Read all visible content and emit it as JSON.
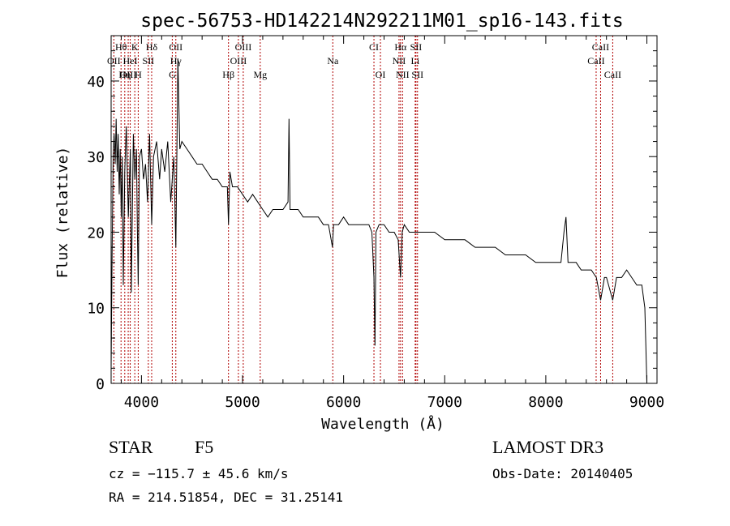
{
  "chart_data": {
    "type": "line",
    "title": "spec-56753-HD142214N292211M01_sp16-143.fits",
    "xlabel": "Wavelength (Å)",
    "ylabel": "Flux (relative)",
    "xlim": [
      3700,
      9100
    ],
    "ylim": [
      0,
      46
    ],
    "xticks": [
      4000,
      5000,
      6000,
      7000,
      8000,
      9000
    ],
    "yticks": [
      0,
      10,
      20,
      30,
      40
    ],
    "grid": false,
    "series": [
      {
        "name": "spectrum",
        "color": "#000000",
        "x": [
          3700,
          3710,
          3720,
          3730,
          3740,
          3750,
          3760,
          3770,
          3780,
          3790,
          3800,
          3810,
          3820,
          3835,
          3850,
          3870,
          3890,
          3900,
          3920,
          3935,
          3950,
          3960,
          3968,
          3980,
          4000,
          4020,
          4040,
          4060,
          4080,
          4101,
          4120,
          4150,
          4180,
          4200,
          4230,
          4260,
          4290,
          4320,
          4340,
          4360,
          4380,
          4400,
          4450,
          4500,
          4550,
          4600,
          4650,
          4700,
          4750,
          4800,
          4850,
          4861,
          4875,
          4900,
          4950,
          5000,
          5050,
          5100,
          5150,
          5200,
          5250,
          5300,
          5350,
          5400,
          5450,
          5460,
          5470,
          5480,
          5500,
          5550,
          5600,
          5650,
          5700,
          5750,
          5800,
          5850,
          5890,
          5900,
          5950,
          6000,
          6050,
          6100,
          6150,
          6200,
          6250,
          6280,
          6300,
          6310,
          6320,
          6350,
          6400,
          6450,
          6500,
          6540,
          6563,
          6580,
          6600,
          6650,
          6700,
          6750,
          6800,
          6900,
          7000,
          7100,
          7200,
          7300,
          7400,
          7500,
          7600,
          7700,
          7800,
          7900,
          8000,
          8100,
          8150,
          8180,
          8200,
          8220,
          8250,
          8300,
          8350,
          8400,
          8450,
          8500,
          8542,
          8580,
          8600,
          8662,
          8700,
          8750,
          8800,
          8850,
          8900,
          8950,
          8980,
          9000
        ],
        "y": [
          2,
          17,
          30,
          33,
          29,
          35,
          28,
          33,
          25,
          31,
          22,
          30,
          13,
          28,
          34,
          22,
          31,
          12,
          33,
          27,
          31,
          20,
          13,
          30,
          31,
          27,
          29,
          24,
          33,
          21,
          30,
          32,
          27,
          31,
          28,
          32,
          24,
          30,
          18,
          43,
          31,
          32,
          31,
          30,
          29,
          29,
          28,
          27,
          27,
          26,
          26,
          21,
          28,
          26,
          26,
          25,
          24,
          25,
          24,
          23,
          22,
          23,
          23,
          23,
          24,
          35,
          23,
          23,
          23,
          23,
          22,
          22,
          22,
          22,
          21,
          21,
          18,
          21,
          21,
          22,
          21,
          21,
          21,
          21,
          21,
          20,
          14,
          5,
          20,
          21,
          21,
          20,
          20,
          19,
          14,
          20,
          21,
          20,
          20,
          20,
          20,
          20,
          19,
          19,
          19,
          18,
          18,
          18,
          17,
          17,
          17,
          16,
          16,
          16,
          16,
          20,
          22,
          16,
          16,
          16,
          15,
          15,
          15,
          14,
          11,
          14,
          14,
          11,
          14,
          14,
          15,
          14,
          13,
          13,
          10,
          0
        ]
      }
    ],
    "lines": [
      {
        "label": "Hθ",
        "wave": 3798,
        "row": 0
      },
      {
        "label": "K",
        "wave": 3934,
        "row": 0
      },
      {
        "label": "Hδ",
        "wave": 4101,
        "row": 0
      },
      {
        "label": "OII",
        "wave": 4340,
        "row": 0
      },
      {
        "label": "OIII",
        "wave": 5007,
        "row": 0
      },
      {
        "label": "CI",
        "wave": 6300,
        "row": 0
      },
      {
        "label": "Hα",
        "wave": 6563,
        "row": 0
      },
      {
        "label": "SII",
        "wave": 6716,
        "row": 0
      },
      {
        "label": "CaII",
        "wave": 8542,
        "row": 0
      },
      {
        "label": "OII",
        "wave": 3727,
        "row": 1
      },
      {
        "label": "HeI",
        "wave": 3889,
        "row": 1
      },
      {
        "label": "SII",
        "wave": 4068,
        "row": 1
      },
      {
        "label": "Hγ",
        "wave": 4340,
        "row": 1
      },
      {
        "label": "OIII",
        "wave": 4959,
        "row": 1
      },
      {
        "label": "Na",
        "wave": 5893,
        "row": 1
      },
      {
        "label": "NII",
        "wave": 6548,
        "row": 1
      },
      {
        "label": "Li",
        "wave": 6708,
        "row": 1
      },
      {
        "label": "CaII",
        "wave": 8498,
        "row": 1
      },
      {
        "label": "OIII",
        "wave": 3869,
        "row": 2
      },
      {
        "label": "Hη",
        "wave": 3835,
        "row": 2
      },
      {
        "label": "H",
        "wave": 3968,
        "row": 2
      },
      {
        "label": "G",
        "wave": 4305,
        "row": 2
      },
      {
        "label": "Hβ",
        "wave": 4861,
        "row": 2
      },
      {
        "label": "Mg",
        "wave": 5175,
        "row": 2
      },
      {
        "label": "OI",
        "wave": 6364,
        "row": 2
      },
      {
        "label": "NII",
        "wave": 6583,
        "row": 2
      },
      {
        "label": "SII",
        "wave": 6731,
        "row": 2
      },
      {
        "label": "CaII",
        "wave": 8662,
        "row": 2
      }
    ],
    "line_marker_color": "#b00000"
  },
  "info": {
    "class": "STAR",
    "subclass": "F5",
    "survey": "LAMOST DR3",
    "cz": "cz = −115.7 ± 45.6 km/s",
    "obs_date": "Obs-Date: 20140405",
    "coords": "RA = 214.51854, DEC =  31.25141"
  }
}
